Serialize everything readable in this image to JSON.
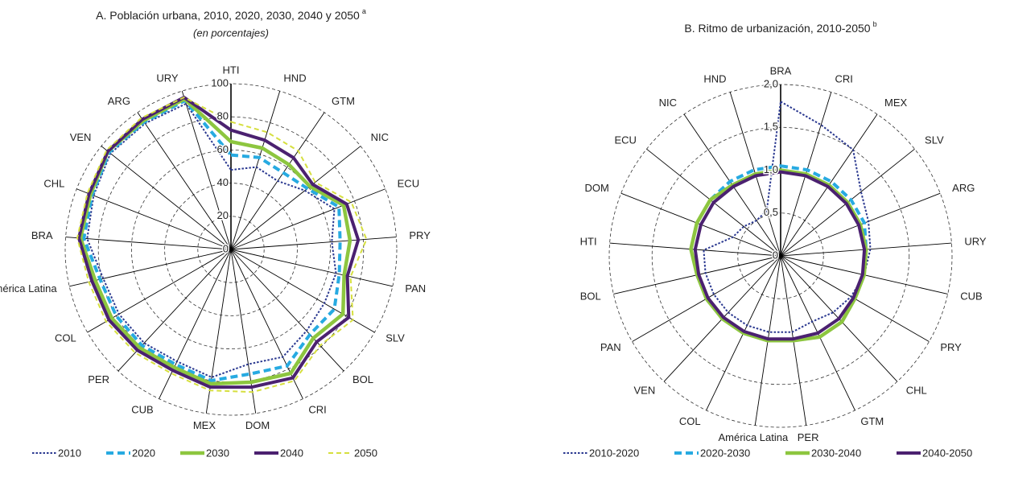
{
  "chart_data": [
    {
      "type": "radar",
      "title": "A. Población urbana, 2010, 2020, 2030, 2040 y 2050",
      "title_note": "a",
      "subtitle": "(en porcentajes)",
      "categories": [
        "HTI",
        "HND",
        "GTM",
        "NIC",
        "ECU",
        "PRY",
        "PAN",
        "SLV",
        "BOL",
        "CRI",
        "DOM",
        "MEX",
        "CUB",
        "PER",
        "COL",
        "América Latina",
        "BRA",
        "CHL",
        "VEN",
        "ARG",
        "URY"
      ],
      "rlim": [
        0,
        100
      ],
      "rticks": [
        0,
        20,
        40,
        60,
        80,
        100
      ],
      "grid": true,
      "series": [
        {
          "name": "2010",
          "color": "#2b3990",
          "style": "dotted",
          "width": 2,
          "values": [
            48,
            52,
            50,
            57,
            67,
            61,
            65,
            65,
            67,
            72,
            70,
            78,
            75,
            77,
            78,
            79,
            87,
            89,
            93,
            92,
            92
          ]
        },
        {
          "name": "2020",
          "color": "#27aae1",
          "style": "dashed",
          "width": 4,
          "values": [
            57,
            58,
            56,
            59,
            70,
            66,
            67,
            72,
            70,
            78,
            76,
            80,
            77,
            79,
            80,
            81,
            89,
            90,
            94,
            93,
            94
          ]
        },
        {
          "name": "2030",
          "color": "#8dc63f",
          "style": "solid",
          "width": 4.5,
          "values": [
            65,
            64,
            62,
            61,
            73,
            72,
            70,
            78,
            73,
            83,
            81,
            82,
            79,
            81,
            83,
            84,
            91,
            91,
            95,
            94,
            95
          ]
        },
        {
          "name": "2040",
          "color": "#4b2170",
          "style": "solid",
          "width": 4,
          "values": [
            72,
            69,
            67,
            63,
            75,
            77,
            72,
            82,
            76,
            86,
            84,
            84,
            81,
            83,
            85,
            86,
            92,
            92,
            95,
            95,
            96
          ]
        },
        {
          "name": "2050",
          "color": "#d6df3f",
          "style": "dashed",
          "width": 2,
          "values": [
            77,
            74,
            72,
            65,
            78,
            82,
            74,
            85,
            79,
            88,
            87,
            86,
            83,
            85,
            87,
            88,
            93,
            93,
            96,
            96,
            96
          ]
        }
      ]
    },
    {
      "type": "radar",
      "title": "B. Ritmo de urbanización, 2010-2050",
      "title_note": "b",
      "categories": [
        "BRA",
        "CRI",
        "MEX",
        "SLV",
        "ARG",
        "URY",
        "CUB",
        "PRY",
        "CHL",
        "GTM",
        "PER",
        "América Latina",
        "COL",
        "VEN",
        "PAN",
        "BOL",
        "HTI",
        "DOM",
        "ECU",
        "NIC",
        "HND"
      ],
      "rlim": [
        0,
        2
      ],
      "rticks": [
        0,
        {
          "value": 0.5,
          "label": "0,5"
        },
        {
          "value": 1,
          "label": "1,0"
        },
        {
          "value": 1.5,
          "label": "1,5"
        },
        {
          "value": 2,
          "label": "2,0"
        }
      ],
      "grid": true,
      "series": [
        {
          "name": "2010-2020",
          "color": "#2b3990",
          "style": "dotted",
          "width": 2,
          "values": [
            1.8,
            1.6,
            1.5,
            1.2,
            1.1,
            1.05,
            1.0,
            0.95,
            0.9,
            0.85,
            0.9,
            0.9,
            0.9,
            0.9,
            0.9,
            0.9,
            0.9,
            0.6,
            0.55,
            0.5,
            0.55
          ]
        },
        {
          "name": "2020-2030",
          "color": "#27aae1",
          "style": "dashed",
          "width": 4,
          "values": [
            1.05,
            1.05,
            1.05,
            1.05,
            1.05,
            1.0,
            1.0,
            1.0,
            1.05,
            1.05,
            1.0,
            1.0,
            1.0,
            1.0,
            1.0,
            1.0,
            1.05,
            1.05,
            1.05,
            1.05,
            1.05
          ]
        },
        {
          "name": "2030-2040",
          "color": "#8dc63f",
          "style": "solid",
          "width": 4.5,
          "values": [
            1.0,
            1.0,
            1.0,
            1.0,
            1.0,
            1.0,
            1.0,
            1.0,
            1.05,
            1.05,
            1.0,
            1.0,
            1.0,
            1.0,
            1.0,
            1.0,
            1.05,
            1.05,
            1.05,
            1.0,
            1.0
          ]
        },
        {
          "name": "2040-2050",
          "color": "#4b2170",
          "style": "solid",
          "width": 4,
          "values": [
            0.98,
            0.98,
            0.98,
            0.98,
            0.98,
            0.98,
            0.98,
            0.98,
            1.0,
            1.0,
            0.98,
            0.98,
            0.98,
            0.98,
            0.98,
            0.98,
            1.0,
            1.0,
            1.0,
            0.98,
            0.98
          ]
        }
      ]
    }
  ]
}
